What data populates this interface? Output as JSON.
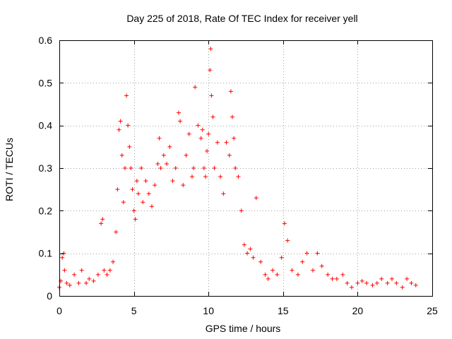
{
  "chart_data": {
    "type": "scatter",
    "title": "Day 225 of 2018, Rate Of TEC Index for receiver yell",
    "xlabel": "GPS time / hours",
    "ylabel": "ROTI / TECUs",
    "xlim": [
      0,
      25
    ],
    "ylim": [
      0,
      0.6
    ],
    "xticks": [
      0,
      5,
      10,
      15,
      20,
      25
    ],
    "yticks": [
      0,
      0.1,
      0.2,
      0.3,
      0.4,
      0.5,
      0.6
    ],
    "xtick_labels": [
      "0",
      "5",
      "10",
      "15",
      "20",
      "25"
    ],
    "ytick_labels": [
      "0",
      "0.1",
      "0.2",
      "0.3",
      "0.4",
      "0.5",
      "0.6"
    ],
    "grid": true,
    "marker": "+",
    "series": [
      {
        "name": "ROTI",
        "color": "#ff0000",
        "x": [
          0.0,
          0.1,
          0.2,
          0.3,
          0.35,
          0.5,
          0.7,
          1.0,
          1.3,
          1.5,
          1.8,
          2.0,
          2.3,
          2.6,
          2.8,
          2.9,
          3.0,
          3.2,
          3.4,
          3.6,
          3.8,
          3.9,
          4.0,
          4.1,
          4.2,
          4.3,
          4.4,
          4.5,
          4.6,
          4.7,
          4.8,
          4.9,
          5.0,
          5.1,
          5.2,
          5.3,
          5.5,
          5.6,
          5.8,
          6.0,
          6.2,
          6.4,
          6.6,
          6.7,
          6.8,
          7.0,
          7.2,
          7.4,
          7.6,
          7.8,
          8.0,
          8.1,
          8.3,
          8.5,
          8.7,
          8.9,
          9.0,
          9.1,
          9.3,
          9.5,
          9.6,
          9.7,
          9.8,
          9.9,
          10.0,
          10.1,
          10.15,
          10.2,
          10.3,
          10.4,
          10.6,
          10.8,
          11.0,
          11.2,
          11.4,
          11.5,
          11.6,
          11.7,
          11.8,
          12.0,
          12.2,
          12.4,
          12.6,
          12.8,
          13.0,
          13.2,
          13.5,
          13.8,
          14.0,
          14.3,
          14.6,
          14.9,
          15.1,
          15.3,
          15.6,
          16.0,
          16.3,
          16.6,
          17.0,
          17.3,
          17.6,
          18.0,
          18.3,
          18.6,
          19.0,
          19.3,
          19.6,
          20.0,
          20.3,
          20.6,
          21.0,
          21.3,
          21.6,
          22.0,
          22.3,
          22.6,
          23.0,
          23.3,
          23.6,
          23.9
        ],
        "y": [
          0.02,
          0.035,
          0.09,
          0.1,
          0.06,
          0.03,
          0.025,
          0.05,
          0.03,
          0.06,
          0.03,
          0.04,
          0.035,
          0.05,
          0.17,
          0.18,
          0.06,
          0.05,
          0.06,
          0.08,
          0.15,
          0.25,
          0.39,
          0.41,
          0.33,
          0.22,
          0.3,
          0.47,
          0.4,
          0.35,
          0.3,
          0.25,
          0.2,
          0.18,
          0.27,
          0.24,
          0.3,
          0.22,
          0.27,
          0.24,
          0.21,
          0.26,
          0.31,
          0.37,
          0.3,
          0.33,
          0.31,
          0.35,
          0.27,
          0.3,
          0.43,
          0.41,
          0.26,
          0.33,
          0.38,
          0.28,
          0.3,
          0.49,
          0.4,
          0.37,
          0.39,
          0.3,
          0.28,
          0.34,
          0.38,
          0.53,
          0.58,
          0.47,
          0.42,
          0.3,
          0.36,
          0.28,
          0.24,
          0.36,
          0.33,
          0.48,
          0.42,
          0.37,
          0.3,
          0.28,
          0.2,
          0.12,
          0.1,
          0.11,
          0.09,
          0.23,
          0.08,
          0.05,
          0.04,
          0.06,
          0.05,
          0.09,
          0.17,
          0.13,
          0.06,
          0.05,
          0.08,
          0.1,
          0.06,
          0.1,
          0.07,
          0.05,
          0.04,
          0.04,
          0.05,
          0.03,
          0.02,
          0.03,
          0.035,
          0.03,
          0.025,
          0.03,
          0.04,
          0.03,
          0.04,
          0.03,
          0.02,
          0.04,
          0.03,
          0.025
        ]
      }
    ]
  }
}
